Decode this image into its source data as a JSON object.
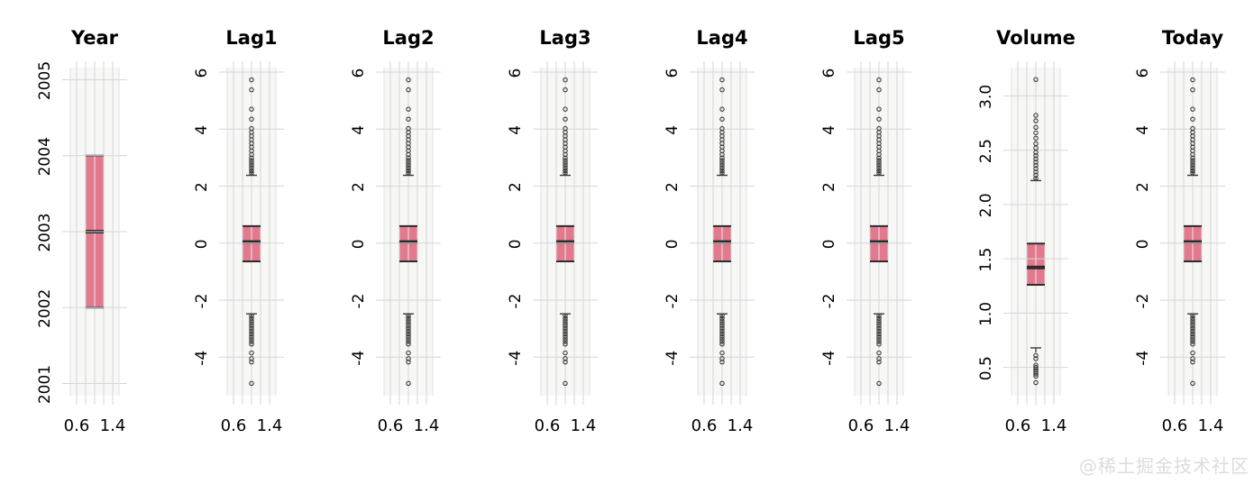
{
  "watermark": {
    "text": "@稀土掘金技术社区"
  },
  "chart_data": {
    "type": "boxplot",
    "title": "",
    "layout": {
      "grid": true,
      "orientation": "vertical",
      "n_panels": 8,
      "legend": "none"
    },
    "colors": {
      "box_fill": "#E2798D",
      "box_line": "#2D2D2D",
      "whisker": "#3A3A3A",
      "grid": "#D6D6D6",
      "panel_edge": "#E0E0E0",
      "panel_bg": "#F7F7F6",
      "box_overlay_line": "rgba(255,255,255,0.55)",
      "text": "#000000",
      "watermark": "#DCDCDC"
    },
    "x_axis": {
      "ticks": [
        0.6,
        0.8,
        1.0,
        1.2,
        1.4
      ],
      "labeled_tick_values": [
        0.6,
        1.4
      ],
      "labels": [
        "0.6",
        "1.4"
      ],
      "xlim": [
        0.46,
        1.54
      ],
      "box_center": 1.0,
      "box_width": 0.4
    },
    "panels": [
      {
        "title": "Year",
        "ylim": [
          2000.84,
          2005.16
        ],
        "yticks": [
          2001,
          2002,
          2003,
          2004,
          2005
        ],
        "ytick_labels": [
          "2001",
          "2002",
          "2003",
          "2004",
          "2005"
        ],
        "box": {
          "q1": 2002,
          "median": 2003,
          "q3": 2004
        },
        "whisker_low": null,
        "whisker_high": null,
        "outliers_high": [],
        "outliers_low": []
      },
      {
        "title": "Lag1",
        "ylim": [
          -5.35,
          6.16
        ],
        "yticks": [
          -4,
          -2,
          0,
          2,
          4,
          6
        ],
        "ytick_labels": [
          "-4",
          "-2",
          "0",
          "2",
          "4",
          "6"
        ],
        "box": {
          "q1": -0.64,
          "median": 0.04,
          "q3": 0.6
        },
        "whisker_low": -2.48,
        "whisker_high": 2.38,
        "outliers_high": [
          5.73,
          5.38,
          4.7,
          4.35,
          4.02,
          3.89,
          3.76,
          3.63,
          3.5,
          3.37,
          3.24,
          3.11,
          2.99,
          2.9,
          2.81,
          2.72,
          2.63,
          2.54,
          2.46
        ],
        "outliers_low": [
          -2.55,
          -2.64,
          -2.73,
          -2.82,
          -2.91,
          -3.0,
          -3.09,
          -3.18,
          -3.27,
          -3.36,
          -3.45,
          -3.54,
          -3.85,
          -4.05,
          -4.17,
          -4.92
        ]
      },
      {
        "title": "Lag2",
        "ylim": [
          -5.35,
          6.16
        ],
        "yticks": [
          -4,
          -2,
          0,
          2,
          4,
          6
        ],
        "ytick_labels": [
          "-4",
          "-2",
          "0",
          "2",
          "4",
          "6"
        ],
        "box": {
          "q1": -0.64,
          "median": 0.04,
          "q3": 0.6
        },
        "whisker_low": -2.48,
        "whisker_high": 2.38,
        "outliers_high": [
          5.73,
          5.38,
          4.7,
          4.35,
          4.02,
          3.89,
          3.76,
          3.63,
          3.5,
          3.37,
          3.24,
          3.11,
          2.99,
          2.9,
          2.81,
          2.72,
          2.63,
          2.54,
          2.46
        ],
        "outliers_low": [
          -2.55,
          -2.64,
          -2.73,
          -2.82,
          -2.91,
          -3.0,
          -3.09,
          -3.18,
          -3.27,
          -3.36,
          -3.45,
          -3.54,
          -3.85,
          -4.05,
          -4.17,
          -4.92
        ]
      },
      {
        "title": "Lag3",
        "ylim": [
          -5.35,
          6.16
        ],
        "yticks": [
          -4,
          -2,
          0,
          2,
          4,
          6
        ],
        "ytick_labels": [
          "-4",
          "-2",
          "0",
          "2",
          "4",
          "6"
        ],
        "box": {
          "q1": -0.64,
          "median": 0.04,
          "q3": 0.6
        },
        "whisker_low": -2.48,
        "whisker_high": 2.38,
        "outliers_high": [
          5.73,
          5.38,
          4.7,
          4.35,
          4.02,
          3.89,
          3.76,
          3.63,
          3.5,
          3.37,
          3.24,
          3.11,
          2.99,
          2.9,
          2.81,
          2.72,
          2.63,
          2.54,
          2.46
        ],
        "outliers_low": [
          -2.55,
          -2.64,
          -2.73,
          -2.82,
          -2.91,
          -3.0,
          -3.09,
          -3.18,
          -3.27,
          -3.36,
          -3.45,
          -3.54,
          -3.85,
          -4.05,
          -4.17,
          -4.92
        ]
      },
      {
        "title": "Lag4",
        "ylim": [
          -5.35,
          6.16
        ],
        "yticks": [
          -4,
          -2,
          0,
          2,
          4,
          6
        ],
        "ytick_labels": [
          "-4",
          "-2",
          "0",
          "2",
          "4",
          "6"
        ],
        "box": {
          "q1": -0.64,
          "median": 0.04,
          "q3": 0.6
        },
        "whisker_low": -2.48,
        "whisker_high": 2.38,
        "outliers_high": [
          5.73,
          5.38,
          4.7,
          4.35,
          4.02,
          3.89,
          3.76,
          3.63,
          3.5,
          3.37,
          3.24,
          3.11,
          2.99,
          2.9,
          2.81,
          2.72,
          2.63,
          2.54,
          2.46
        ],
        "outliers_low": [
          -2.55,
          -2.64,
          -2.73,
          -2.82,
          -2.91,
          -3.0,
          -3.09,
          -3.18,
          -3.27,
          -3.36,
          -3.45,
          -3.54,
          -3.85,
          -4.05,
          -4.17,
          -4.92
        ]
      },
      {
        "title": "Lag5",
        "ylim": [
          -5.35,
          6.16
        ],
        "yticks": [
          -4,
          -2,
          0,
          2,
          4,
          6
        ],
        "ytick_labels": [
          "-4",
          "-2",
          "0",
          "2",
          "4",
          "6"
        ],
        "box": {
          "q1": -0.64,
          "median": 0.04,
          "q3": 0.6
        },
        "whisker_low": -2.48,
        "whisker_high": 2.38,
        "outliers_high": [
          5.73,
          5.38,
          4.7,
          4.35,
          4.02,
          3.89,
          3.76,
          3.63,
          3.5,
          3.37,
          3.24,
          3.11,
          2.99,
          2.9,
          2.81,
          2.72,
          2.63,
          2.54,
          2.46
        ],
        "outliers_low": [
          -2.55,
          -2.64,
          -2.73,
          -2.82,
          -2.91,
          -3.0,
          -3.09,
          -3.18,
          -3.27,
          -3.36,
          -3.45,
          -3.54,
          -3.85,
          -4.05,
          -4.17,
          -4.92
        ]
      },
      {
        "title": "Volume",
        "ylim": [
          0.24,
          3.26
        ],
        "yticks": [
          0.5,
          1.0,
          1.5,
          2.0,
          2.5,
          3.0
        ],
        "ytick_labels": [
          "0.5",
          "1.0",
          "1.5",
          "2.0",
          "2.5",
          "3.0"
        ],
        "box": {
          "q1": 1.26,
          "median": 1.42,
          "q3": 1.64
        },
        "whisker_low": 0.68,
        "whisker_high": 2.22,
        "outliers_high": [
          3.15,
          2.82,
          2.77,
          2.71,
          2.66,
          2.61,
          2.56,
          2.52,
          2.48,
          2.45,
          2.42,
          2.39,
          2.36,
          2.33,
          2.3,
          2.27,
          2.24
        ],
        "outliers_low": [
          0.61,
          0.58,
          0.52,
          0.5,
          0.48,
          0.46,
          0.44,
          0.42,
          0.36
        ]
      },
      {
        "title": "Today",
        "ylim": [
          -5.35,
          6.16
        ],
        "yticks": [
          -4,
          -2,
          0,
          2,
          4,
          6
        ],
        "ytick_labels": [
          "-4",
          "-2",
          "0",
          "2",
          "4",
          "6"
        ],
        "box": {
          "q1": -0.64,
          "median": 0.04,
          "q3": 0.6
        },
        "whisker_low": -2.48,
        "whisker_high": 2.38,
        "outliers_high": [
          5.73,
          5.38,
          4.7,
          4.35,
          4.02,
          3.89,
          3.76,
          3.63,
          3.5,
          3.37,
          3.24,
          3.11,
          2.99,
          2.9,
          2.81,
          2.72,
          2.63,
          2.54,
          2.46
        ],
        "outliers_low": [
          -2.55,
          -2.64,
          -2.73,
          -2.82,
          -2.91,
          -3.0,
          -3.09,
          -3.18,
          -3.27,
          -3.36,
          -3.45,
          -3.54,
          -3.85,
          -4.05,
          -4.17,
          -4.92
        ]
      }
    ]
  }
}
